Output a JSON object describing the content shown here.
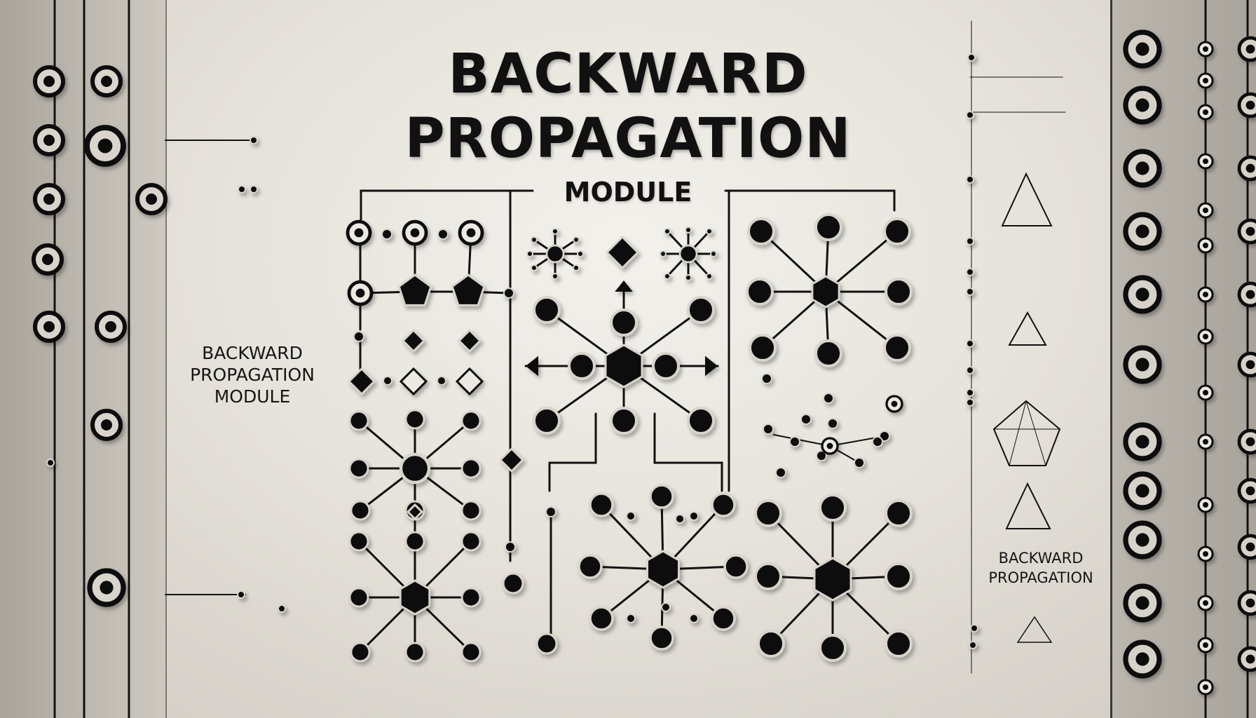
{
  "title": {
    "line1": "BACKWARD",
    "line2": "PROPAGATION",
    "subtitle": "MODULE"
  },
  "left_label": {
    "line1": "BACKWARD",
    "line2": "PROPAGATION",
    "line3": "MODULE"
  },
  "right_label": {
    "line1": "BACKWARD",
    "line2": "PROPAGATION"
  },
  "colors": {
    "background": "#ebe8e2",
    "ink": "#111111",
    "node_ring": "#d8d4cc",
    "panel": "#b5b1a9"
  },
  "icons": [
    "network-node-icon",
    "hexagon-hub-icon",
    "arrow-icon",
    "triangle-icon",
    "pentagon-icon",
    "ring-icon"
  ]
}
